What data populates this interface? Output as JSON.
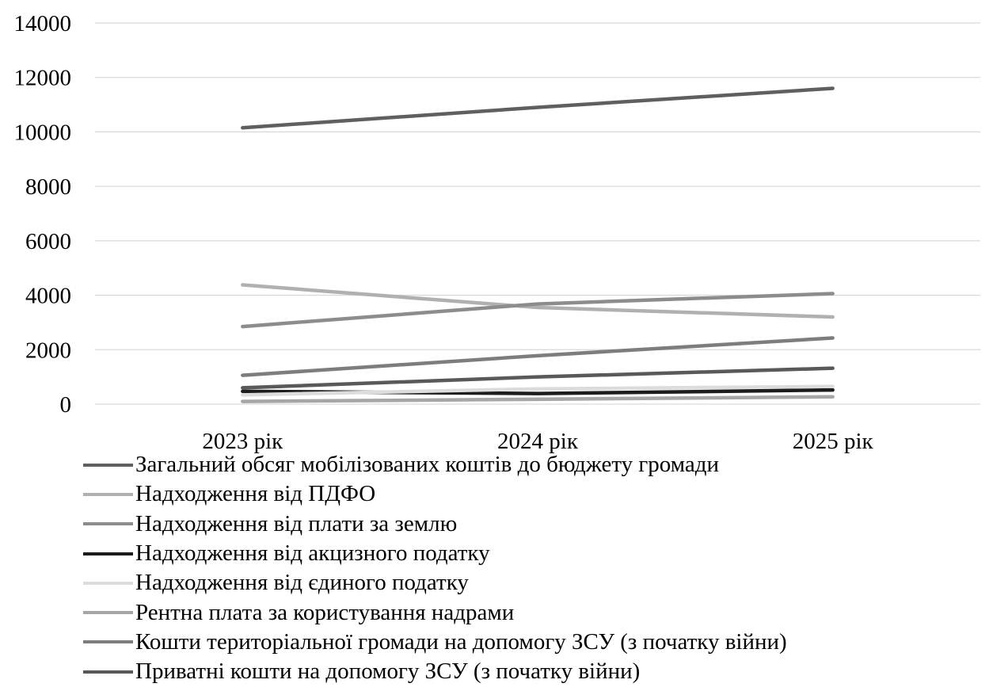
{
  "chart_data": {
    "type": "line",
    "title": "",
    "xlabel": "",
    "ylabel": "",
    "categories": [
      "2023 рік",
      "2024 рік",
      "2025 рік"
    ],
    "ylim": [
      0,
      14000
    ],
    "yticks": [
      "0",
      "2000",
      "4000",
      "6000",
      "8000",
      "10000",
      "12000",
      "14000"
    ],
    "grid": true,
    "legend_position": "bottom",
    "series": [
      {
        "name": "Загальний обсяг мобілізованих коштів до бюджету громади",
        "values": [
          10150,
          10900,
          11600
        ],
        "color": "#5f5f5f"
      },
      {
        "name": "Надходження від ПДФО",
        "values": [
          4380,
          3550,
          3200
        ],
        "color": "#b0b0b0"
      },
      {
        "name": "Надходження від плати за землю",
        "values": [
          2850,
          3680,
          4060
        ],
        "color": "#8c8c8c"
      },
      {
        "name": "Надходження від акцизного податку",
        "values": [
          470,
          390,
          520
        ],
        "color": "#1c1c1c"
      },
      {
        "name": "Надходження від єдиного податку",
        "values": [
          340,
          560,
          650
        ],
        "color": "#dcdcdc"
      },
      {
        "name": "Рентна плата за користування надрами",
        "values": [
          100,
          180,
          270
        ],
        "color": "#a6a6a6"
      },
      {
        "name": "Кошти територіальної громади на допомогу ЗСУ (з початку війни)",
        "values": [
          1060,
          1780,
          2430
        ],
        "color": "#7d7d7d"
      },
      {
        "name": "Приватні кошти на допомогу ЗСУ (з початку війни)",
        "values": [
          600,
          1000,
          1320
        ],
        "color": "#595959"
      }
    ]
  }
}
